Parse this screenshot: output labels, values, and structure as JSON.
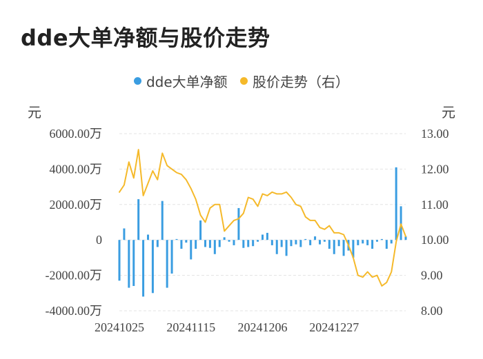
{
  "title": "dde大单净额与股价走势",
  "units": {
    "left": "元",
    "right": "元"
  },
  "legend": [
    {
      "label": "dde大单净额",
      "color": "#3a9de1",
      "icon": "circle-dot"
    },
    {
      "label": "股价走势（右）",
      "color": "#f5b92a",
      "icon": "circle-dot"
    }
  ],
  "chart_data": {
    "type": "bar+line",
    "grid": "horizontal dashed lines",
    "legend_position": "top-center",
    "x_tick_labels": [
      "20241025",
      "20241115",
      "20241206",
      "20241227"
    ],
    "x_tick_index": [
      0,
      15,
      30,
      45
    ],
    "y_left": {
      "min": -4000,
      "max": 6000,
      "step": 2000,
      "tick_labels": [
        "-4000.00万",
        "-2000.00万",
        "0",
        "2000.00万",
        "4000.00万",
        "6000.00万"
      ]
    },
    "y_right": {
      "min": 8,
      "max": 13,
      "step": 1,
      "tick_labels": [
        "8.00",
        "9.00",
        "10.00",
        "11.00",
        "12.00",
        "13.00"
      ]
    },
    "series": [
      {
        "name": "dde大单净额",
        "type": "bar",
        "axis": "left",
        "color": "#3a9de1",
        "unit": "万元",
        "values": [
          -2300,
          650,
          -2700,
          -2600,
          2300,
          -3200,
          300,
          -3000,
          -400,
          2200,
          -2700,
          -1900,
          50,
          -500,
          -150,
          -1100,
          -500,
          1100,
          -400,
          -450,
          -800,
          -400,
          150,
          -100,
          -300,
          1800,
          -450,
          -400,
          -350,
          -100,
          300,
          400,
          -300,
          -800,
          -400,
          -900,
          -350,
          -250,
          -400,
          50,
          -300,
          200,
          -250,
          -100,
          -500,
          -800,
          -350,
          -900,
          -600,
          -1000,
          -300,
          -200,
          -300,
          -500,
          -100,
          50,
          -500,
          -200,
          4100,
          1900,
          200
        ]
      },
      {
        "name": "股价走势（右）",
        "type": "line",
        "axis": "right",
        "color": "#f5b92a",
        "unit": "元",
        "values": [
          11.35,
          11.55,
          12.2,
          11.75,
          12.55,
          11.25,
          11.6,
          11.95,
          11.7,
          12.45,
          12.1,
          12.0,
          11.9,
          11.85,
          11.7,
          11.45,
          11.15,
          10.7,
          10.5,
          10.9,
          11.0,
          11.0,
          10.25,
          10.4,
          10.55,
          10.6,
          10.75,
          11.2,
          11.15,
          10.95,
          11.3,
          11.25,
          11.35,
          11.3,
          11.3,
          11.35,
          11.2,
          11.0,
          10.95,
          10.65,
          10.55,
          10.55,
          10.35,
          10.3,
          10.4,
          10.2,
          10.2,
          10.15,
          9.85,
          9.5,
          9.0,
          8.95,
          9.1,
          8.95,
          9.0,
          8.7,
          8.8,
          9.1,
          9.95,
          10.45,
          10.1
        ]
      }
    ]
  }
}
